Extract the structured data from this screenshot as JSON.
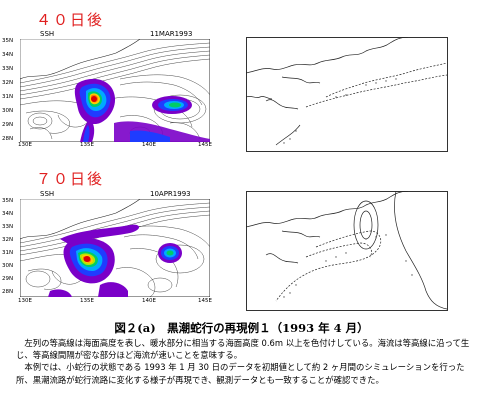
{
  "panels": [
    {
      "label": "４０日後",
      "variable": "SSH",
      "date": "11MAR1993",
      "lat_ticks": [
        "35N",
        "34N",
        "33N",
        "32N",
        "31N",
        "30N",
        "29N",
        "28N"
      ],
      "lon_ticks": [
        "130E",
        "135E",
        "140E",
        "145E"
      ]
    },
    {
      "label": "７０日後",
      "variable": "SSH",
      "date": "10APR1993",
      "lat_ticks": [
        "35N",
        "34N",
        "33N",
        "32N",
        "31N",
        "30N",
        "29N",
        "28N"
      ],
      "lon_ticks": [
        "130E",
        "135E",
        "140E",
        "145E"
      ]
    }
  ],
  "caption": "図２(a)　黒潮蛇行の再現例１（1993 年 4 月）",
  "paragraphs": [
    "左列の等高線は海面高度を表し、暖水部分に相当する海面高度 0.6m 以上を色付けしている。海流は等高線に沿って生じ、等高線間隔が密な部分ほど海流が速いことを意味する。",
    "本例では、小蛇行の状態である 1993 年 1 月 30 日のデータを初期値として約 2 ヶ月間のシミュレーションを行った所、黒潮流路が蛇行流路に変化する様子が再現でき、観測データとも一致することが確認できた。"
  ],
  "colors": {
    "label_red": "#e02020",
    "warm_fill": [
      "#7a00c8",
      "#1f3cff",
      "#00aaff",
      "#00cc66",
      "#b6e600",
      "#ffcc00",
      "#ff7700",
      "#dd0000"
    ]
  }
}
